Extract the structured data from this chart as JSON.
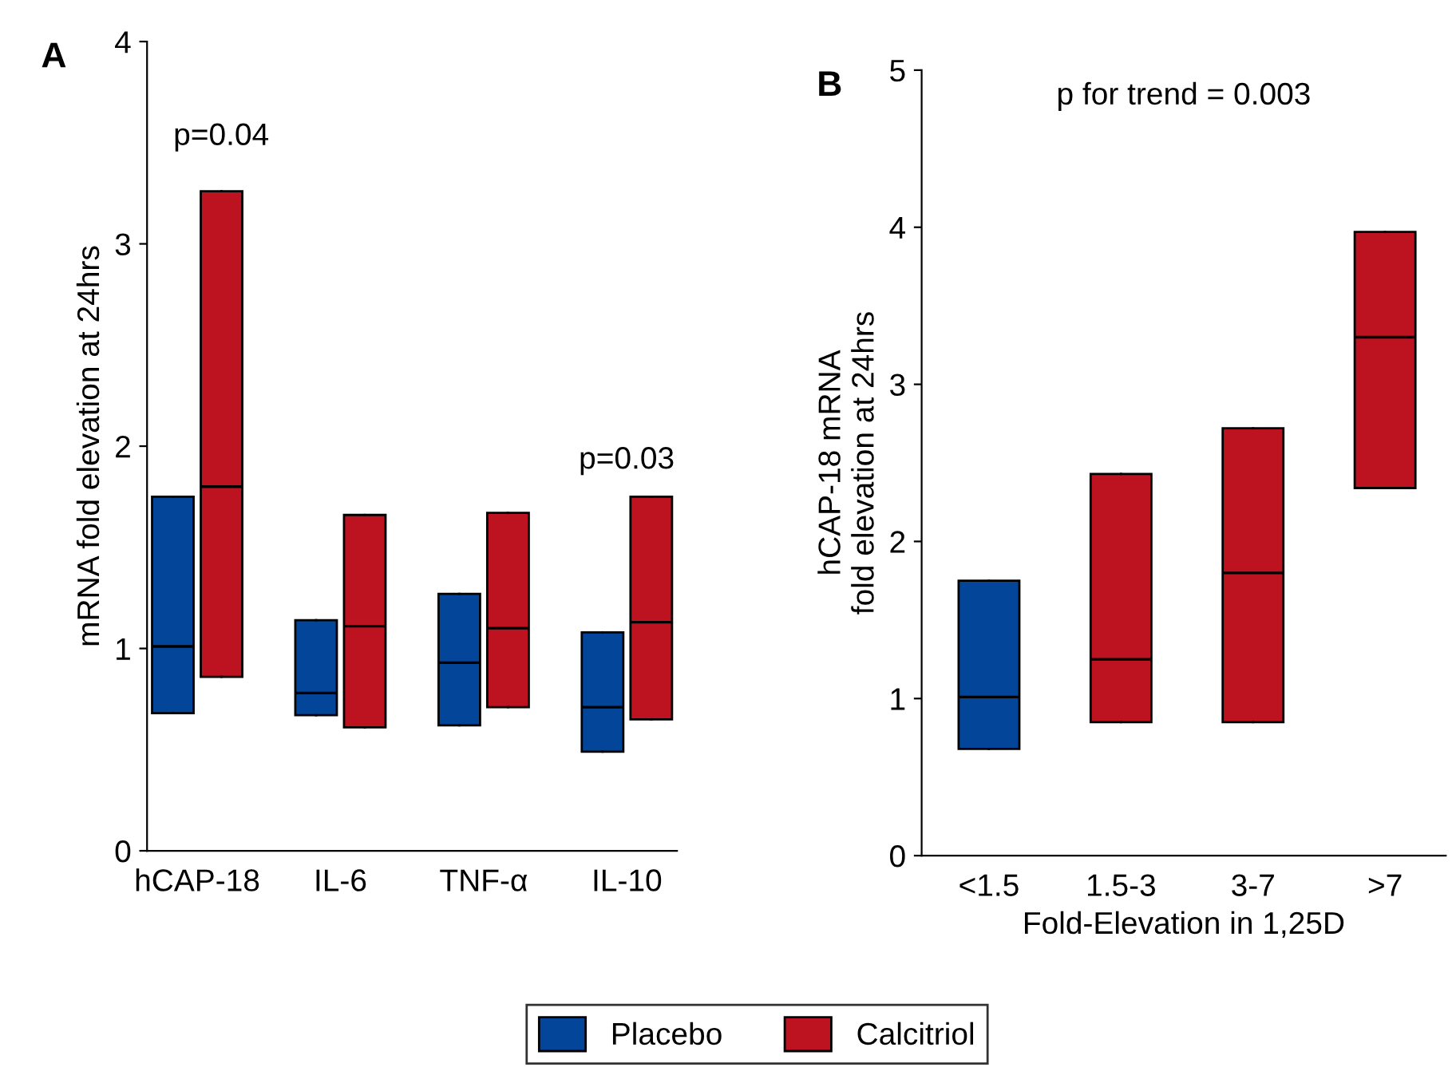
{
  "chart_data": [
    {
      "type": "box",
      "title": "A",
      "ylabel": "mRNA fold elevation at 24hrs",
      "categories": [
        "hCAP-18",
        "IL-6",
        "TNF-α",
        "IL-10"
      ],
      "ylim": [
        0,
        4
      ],
      "yticks": [
        0,
        1,
        2,
        3,
        4
      ],
      "grid": false,
      "legend": "bottom",
      "series": [
        {
          "name": "Placebo",
          "color": "#034699",
          "boxes": [
            {
              "low": 0.68,
              "q1": 0.68,
              "median": 1.01,
              "q3": 1.75,
              "high": 1.75
            },
            {
              "low": 0.67,
              "q1": 0.67,
              "median": 0.78,
              "q3": 1.14,
              "high": 1.14
            },
            {
              "low": 0.62,
              "q1": 0.62,
              "median": 0.93,
              "q3": 1.27,
              "high": 1.27
            },
            {
              "low": 0.49,
              "q1": 0.49,
              "median": 0.71,
              "q3": 1.08,
              "high": 1.08
            }
          ]
        },
        {
          "name": "Calcitriol",
          "color": "#bd1220",
          "boxes": [
            {
              "low": 0.86,
              "q1": 0.86,
              "median": 1.8,
              "q3": 3.26,
              "high": 3.26
            },
            {
              "low": 0.61,
              "q1": 0.61,
              "median": 1.11,
              "q3": 1.66,
              "high": 1.66
            },
            {
              "low": 0.71,
              "q1": 0.71,
              "median": 1.1,
              "q3": 1.67,
              "high": 1.67
            },
            {
              "low": 0.65,
              "q1": 0.65,
              "median": 1.13,
              "q3": 1.75,
              "high": 1.75
            }
          ]
        }
      ],
      "annotations": [
        "p=0.04",
        "p=0.03"
      ]
    },
    {
      "type": "box",
      "title": "B",
      "ylabel": "hCAP-18 mRNA\nfold elevation at 24hrs",
      "xlabel": "Fold-Elevation in 1,25D",
      "categories": [
        "<1.5",
        "1.5-3",
        "3-7",
        ">7"
      ],
      "ylim": [
        0,
        5
      ],
      "yticks": [
        0,
        1,
        2,
        3,
        4,
        5
      ],
      "grid": false,
      "series": [
        {
          "color": "#034699",
          "boxes": [
            {
              "low": 0.68,
              "q1": 0.68,
              "median": 1.01,
              "q3": 1.75,
              "high": 1.75
            },
            null,
            null,
            null
          ]
        },
        {
          "color": "#bd1220",
          "boxes": [
            null,
            {
              "low": 0.85,
              "q1": 0.85,
              "median": 1.25,
              "q3": 2.43,
              "high": 2.43
            },
            {
              "low": 0.85,
              "q1": 0.85,
              "median": 1.8,
              "q3": 2.72,
              "high": 2.72
            },
            {
              "low": 2.34,
              "q1": 2.34,
              "median": 3.3,
              "q3": 3.97,
              "high": 3.97
            }
          ]
        }
      ],
      "annotations": [
        "p for trend = 0.003"
      ]
    }
  ]
}
